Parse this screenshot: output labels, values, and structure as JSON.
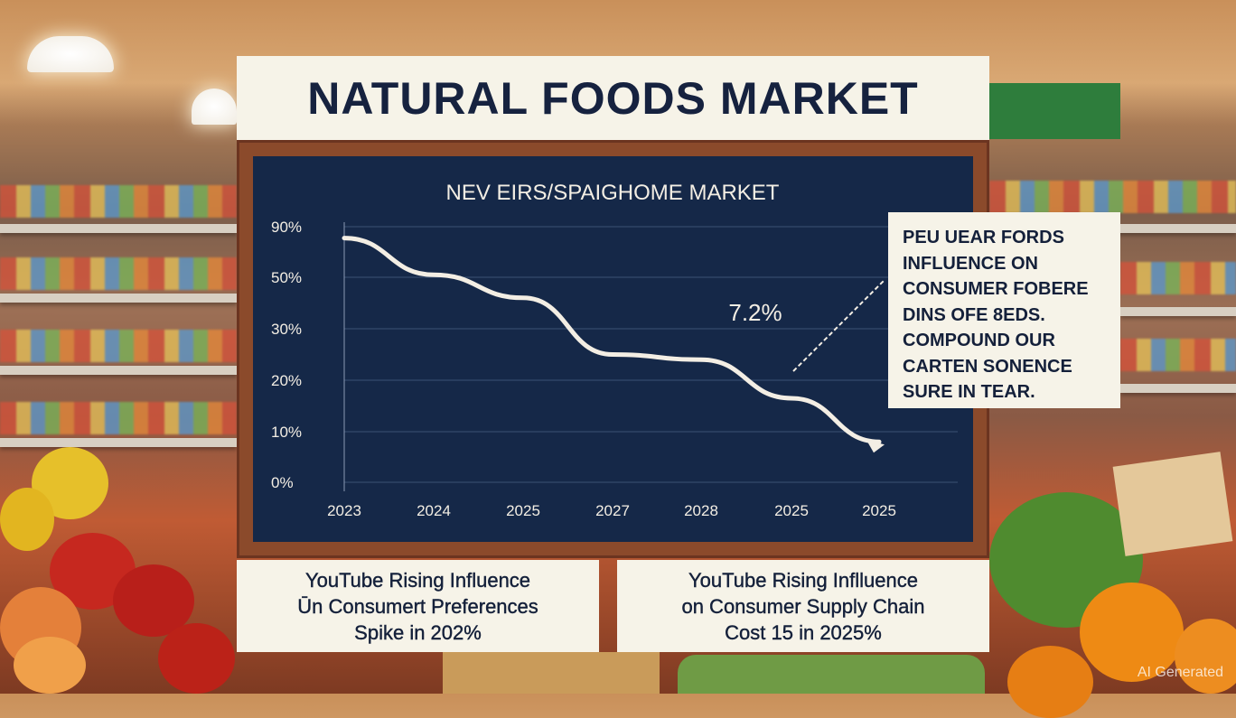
{
  "header": {
    "title": "NATURAL FOODS MARKET"
  },
  "chart_data": {
    "type": "line",
    "title": "NEV EIRS/SPAIGHOME MARKET",
    "categories": [
      "2023",
      "2024",
      "2025",
      "2027",
      "2028",
      "2025",
      "2025"
    ],
    "values": [
      81,
      52,
      42,
      25,
      24,
      16.5,
      8
    ],
    "y_ticks": [
      "90%",
      "50%",
      "30%",
      "20%",
      "10%",
      "0%"
    ],
    "y_tick_values": [
      90,
      50,
      30,
      20,
      10,
      0
    ],
    "annotation": "7.2%",
    "xlabel": "",
    "ylabel": "",
    "grid": true,
    "colors": {
      "line": "#f3eee4",
      "background": "#152848"
    }
  },
  "note": {
    "lines": [
      "PEU UEAR FORDS",
      "INFLUENCE ON",
      "CONSUMER FOBERE",
      "DINS OFE 8EDS.",
      "COMPOUND OUR",
      "CARTEN SONENCE",
      "SURE IN TEAR."
    ]
  },
  "captions": [
    {
      "lines": [
        "YouTube Rising Influence",
        "Ūn Consumert Preferences",
        "Spike in 202%"
      ]
    },
    {
      "lines": [
        "YouTube Rising Inflluence",
        "on Consumer Supply Chain",
        "Cost 15 in 2025%"
      ]
    }
  ],
  "watermark": "AI Generated"
}
